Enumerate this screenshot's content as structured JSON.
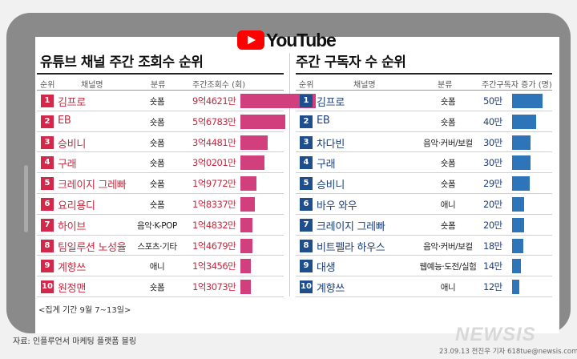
{
  "logo": {
    "text": "YouTube",
    "red": "#ff0000"
  },
  "chart_data": [
    {
      "type": "bar",
      "title": "유튜브 채널 주간 조회수 순위",
      "headers": {
        "rank": "순위",
        "name": "채널명",
        "category": "분류",
        "value": "주간조회수 (회)"
      },
      "colors": {
        "accent": "#c8283f",
        "bar": "#d1407c"
      },
      "rows": [
        {
          "rank": "1",
          "name": "김프로",
          "category": "숏폼",
          "value_label": "9억4621만",
          "value": 946210000
        },
        {
          "rank": "2",
          "name": "EB",
          "category": "숏폼",
          "value_label": "5억6783만",
          "value": 567830000
        },
        {
          "rank": "3",
          "name": "승비니",
          "category": "숏폼",
          "value_label": "3억4481만",
          "value": 344810000
        },
        {
          "rank": "4",
          "name": "구래",
          "category": "숏폼",
          "value_label": "3억0201만",
          "value": 302010000
        },
        {
          "rank": "5",
          "name": "크레이지 그레빠",
          "category": "숏폼",
          "value_label": "1억9772만",
          "value": 197720000
        },
        {
          "rank": "6",
          "name": "요리용디",
          "category": "숏폼",
          "value_label": "1억8337만",
          "value": 183370000
        },
        {
          "rank": "7",
          "name": "하이브",
          "category": "음악·K-POP",
          "value_label": "1억4832만",
          "value": 148320000
        },
        {
          "rank": "8",
          "name": "팀일루션 노성율",
          "category": "스포츠·기타",
          "value_label": "1억4679만",
          "value": 146790000
        },
        {
          "rank": "9",
          "name": "계향쓰",
          "category": "애니",
          "value_label": "1억3456만",
          "value": 134560000
        },
        {
          "rank": "10",
          "name": "원정맨",
          "category": "숏폼",
          "value_label": "1억3073만",
          "value": 130730000
        }
      ]
    },
    {
      "type": "bar",
      "title": "주간 구독자 수 순위",
      "headers": {
        "rank": "순위",
        "name": "채널명",
        "category": "분류",
        "value": "주간구독자 증가 (명)"
      },
      "colors": {
        "accent": "#1d3f78",
        "bar": "#2d75b8"
      },
      "rows": [
        {
          "rank": "1",
          "name": "김프로",
          "category": "숏폼",
          "value_label": "50만",
          "value": 500000
        },
        {
          "rank": "2",
          "name": "EB",
          "category": "숏폼",
          "value_label": "40만",
          "value": 400000
        },
        {
          "rank": "3",
          "name": "차다빈",
          "category": "음악·커버/보컬",
          "value_label": "30만",
          "value": 300000
        },
        {
          "rank": "4",
          "name": "구래",
          "category": "숏폼",
          "value_label": "30만",
          "value": 300000
        },
        {
          "rank": "5",
          "name": "승비니",
          "category": "숏폼",
          "value_label": "29만",
          "value": 290000
        },
        {
          "rank": "6",
          "name": "바우 와우",
          "category": "애니",
          "value_label": "20만",
          "value": 200000
        },
        {
          "rank": "7",
          "name": "크레이지 그레빠",
          "category": "숏폼",
          "value_label": "20만",
          "value": 200000
        },
        {
          "rank": "8",
          "name": "비트펠라 하우스",
          "category": "음악·커버/보컬",
          "value_label": "18만",
          "value": 180000
        },
        {
          "rank": "9",
          "name": "대생",
          "category": "웹예능·도전/실험",
          "value_label": "14만",
          "value": 140000
        },
        {
          "rank": "10",
          "name": "계향쓰",
          "category": "애니",
          "value_label": "12만",
          "value": 120000
        }
      ]
    }
  ],
  "footer": {
    "period": "<집계 기간 9월 7~13일>",
    "source": "자료: 인플루언서 마케팅 플랫폼 블링",
    "watermark": "NEWSIS",
    "credit": "23.09.13 전진우 기자  618tue@newsis.com"
  }
}
